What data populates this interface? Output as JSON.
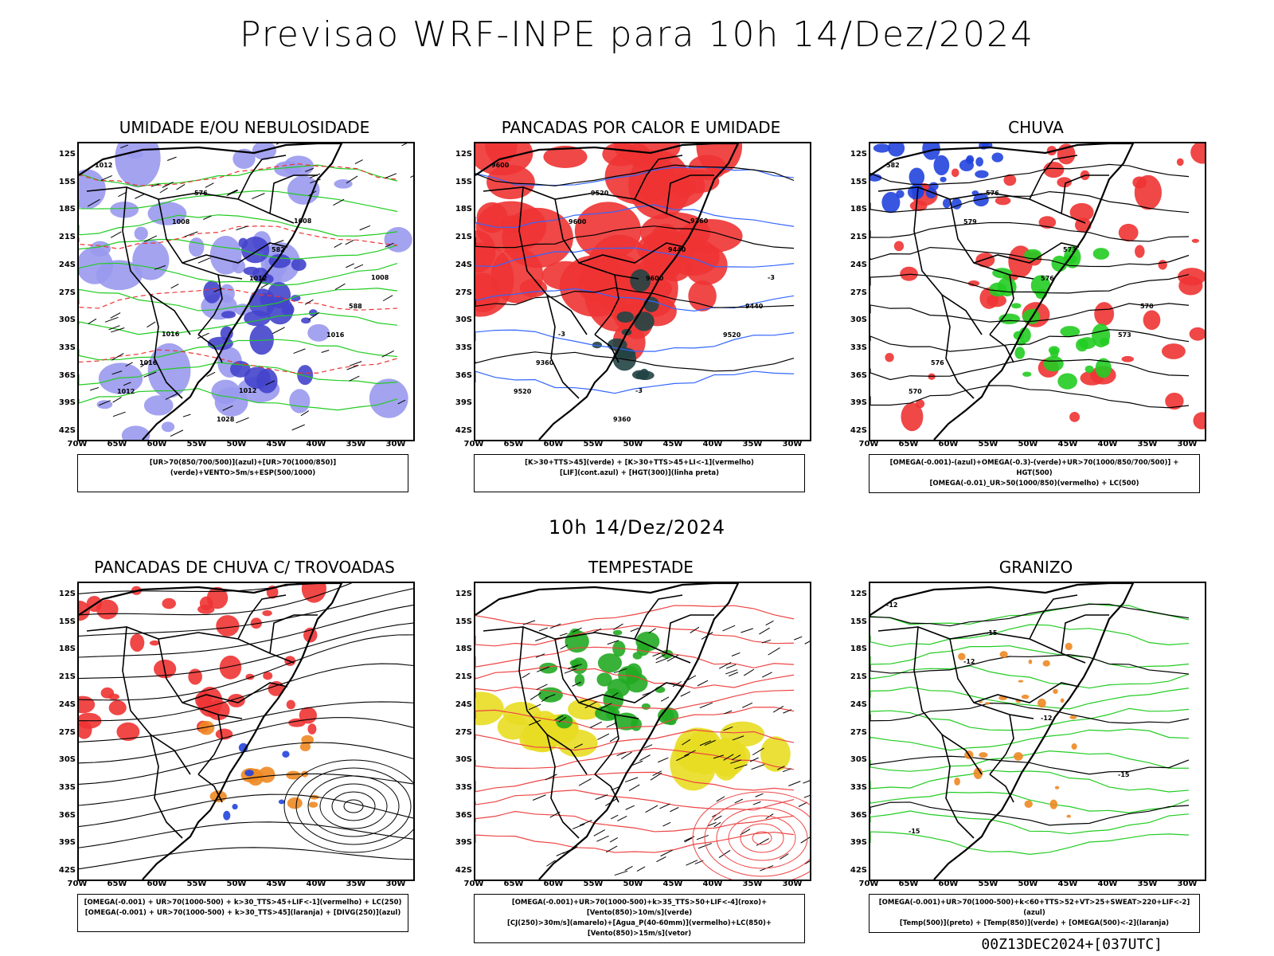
{
  "title": "Previsao WRF-INPE  para 10h 14/Dez/2024",
  "mid_title": "10h 14/Dez/2024",
  "footer": "00Z13DEC2024+[037UTC]",
  "axes": {
    "y_ticks": [
      "12S",
      "15S",
      "18S",
      "21S",
      "24S",
      "27S",
      "30S",
      "33S",
      "36S",
      "39S",
      "42S"
    ],
    "x_ticks": [
      "70W",
      "65W",
      "60W",
      "55W",
      "50W",
      "45W",
      "40W",
      "35W",
      "30W"
    ]
  },
  "panels": [
    {
      "title": "UMIDADE E/OU NEBULOSIDADE",
      "legend": [
        "[UR>70(850/700/500)](azul)+[UR>70(1000/850)](verde)+VENTO>5m/s+ESP(500/1000)"
      ],
      "contour_labels": [
        "1012",
        "1008",
        "1012",
        "1016",
        "1012",
        "576",
        "582",
        "588",
        "1016",
        "1028",
        "1008",
        "1008",
        "1016",
        "1012"
      ]
    },
    {
      "title": "PANCADAS POR CALOR E UMIDADE",
      "legend": [
        "[K>30+TTS>45](verde) + [K>30+TTS>45+LI<-1](vermelho)",
        "[LIF](cont.azul) + [HGT(300)](linha preta)"
      ],
      "contour_labels": [
        "9600",
        "9600",
        "9600",
        "9520",
        "9520",
        "9520",
        "9440",
        "9440",
        "9360",
        "9360",
        "9360",
        "-3",
        "-3",
        "-3"
      ]
    },
    {
      "title": "CHUVA",
      "legend": [
        "[OMEGA(-0.001)-(azul)+OMEGA(-0.3)-(verde)+UR>70(1000/850/700/500)] + HGT(500)",
        "[OMEGA(-0.01)_UR>50(1000/850)(vermelho) + LC(500)"
      ],
      "contour_labels": [
        "582",
        "579",
        "576",
        "573",
        "570",
        "576",
        "573",
        "570",
        "576"
      ]
    },
    {
      "title": "PANCADAS DE CHUVA C/ TROVOADAS",
      "legend": [
        "[OMEGA(-0.001) + UR>70(1000-500) + k>30_TTS>45+LIF<-1](vermelho) + LC(250)",
        "[OMEGA(-0.001) + UR>70(1000-500) + k>30_TTS>45](laranja) + [DIVG(250)](azul)"
      ],
      "contour_labels": []
    },
    {
      "title": "TEMPESTADE",
      "legend": [
        "[OMEGA(-0.001)+UR>70(1000-500)+k>35_TTS>50+LIF<-4](roxo)+[Vento(850)>10m/s](verde)",
        "[CJ(250)>30m/s](amarelo)+[Agua_P(40-60mm)](vermelho)+LC(850)+[Vento(850)>15m/s](vetor)"
      ],
      "contour_labels": []
    },
    {
      "title": "GRANIZO",
      "legend": [
        "[OMEGA(-0.001)+UR>70(1000-500)+k<60+TTS>52+VT>25+SWEAT>220+LIF<-2](azul)",
        "[Temp(500)](preto) + [Temp(850)](verde) + [OMEGA(500)<-2](laranja)"
      ],
      "contour_labels": [
        "-12",
        "-12",
        "-12",
        "-15",
        "-15",
        "-15"
      ]
    }
  ]
}
